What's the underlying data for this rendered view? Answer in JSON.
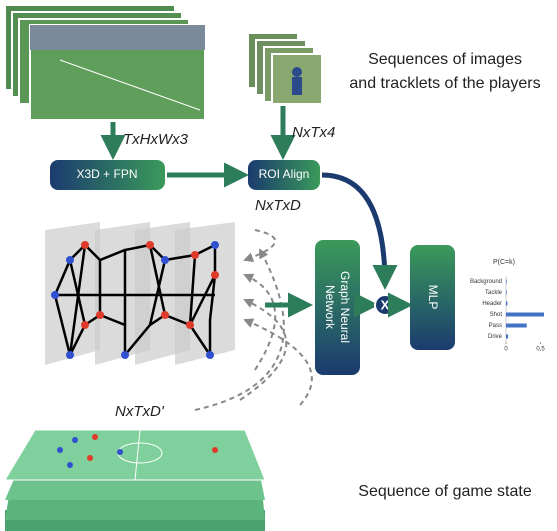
{
  "caption_top": [
    "Sequences of images",
    "and tracklets of the players"
  ],
  "caption_bottom": "Sequence of game state",
  "dims": {
    "video": "TxHxWx3",
    "tracklets": "NxTx4",
    "roi": "NxTxD",
    "graph": "NxTxD'"
  },
  "blocks": {
    "backbone": "X3D + FPN",
    "roi": "ROI Align",
    "gnn": [
      "Graph Neural",
      "Network"
    ],
    "mlp": "MLP",
    "op": "X"
  },
  "chart": {
    "type": "bar",
    "orientation": "horizontal",
    "title": "P(C=k)",
    "categories": [
      "Background",
      "Tackle",
      "Header",
      "Shot",
      "Pass",
      "Drive"
    ],
    "values": [
      0.01,
      0.01,
      0.02,
      0.55,
      0.3,
      0.03
    ],
    "color": "#4472c4",
    "xlim": [
      0,
      0.55
    ],
    "xticks": [
      0,
      {
        "value": 0.5,
        "label": "0,5"
      }
    ]
  }
}
